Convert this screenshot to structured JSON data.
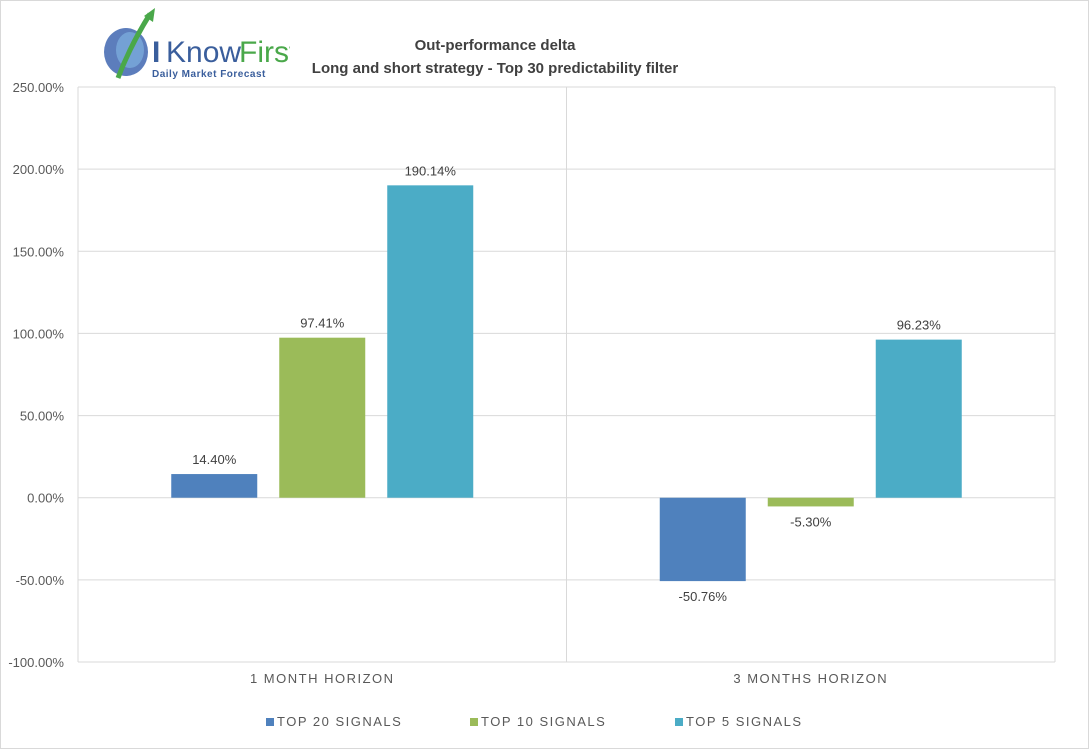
{
  "logo": {
    "brand_i": "I",
    "brand_know": "Know",
    "brand_first": "First",
    "tagline": "Daily Market Forecast"
  },
  "chart_data": {
    "type": "bar",
    "title": "Out-performance delta",
    "subtitle": "Long and short strategy - Top 30 predictability filter",
    "categories": [
      "1 MONTH HORIZON",
      "3 MONTHS HORIZON"
    ],
    "series": [
      {
        "name": "TOP 20 SIGNALS",
        "values": [
          14.4,
          -50.76
        ],
        "labels": [
          "14.40%",
          "-50.76%"
        ],
        "color": "#4f81bd"
      },
      {
        "name": "TOP 10 SIGNALS",
        "values": [
          97.41,
          -5.3
        ],
        "labels": [
          "97.41%",
          "-5.30%"
        ],
        "color": "#9bbb59"
      },
      {
        "name": "TOP 5 SIGNALS",
        "values": [
          190.14,
          96.23
        ],
        "labels": [
          "190.14%",
          "96.23%"
        ],
        "color": "#4bacc6"
      }
    ],
    "ylim": [
      -100,
      250
    ],
    "yticks": [
      250,
      200,
      150,
      100,
      50,
      0,
      -50,
      -100
    ],
    "ytick_labels": [
      "250.00%",
      "200.00%",
      "150.00%",
      "100.00%",
      "50.00%",
      "0.00%",
      "-50.00%",
      "-100.00%"
    ],
    "xlabel": "",
    "ylabel": "",
    "grid": true,
    "legend_position": "bottom"
  }
}
